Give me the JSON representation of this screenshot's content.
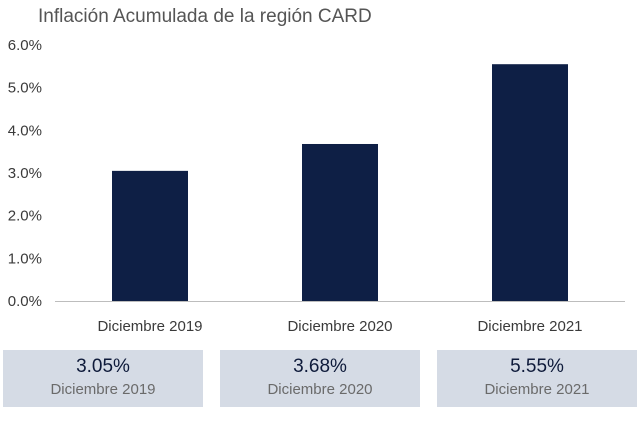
{
  "chart_data": {
    "type": "bar",
    "title": "Inflación Acumulada de la región CARD",
    "categories": [
      "Diciembre 2019",
      "Diciembre 2020",
      "Diciembre 2021"
    ],
    "values": [
      3.05,
      3.68,
      5.55
    ],
    "ylim": [
      0,
      6
    ],
    "yticks": [
      "0.0%",
      "1.0%",
      "2.0%",
      "3.0%",
      "4.0%",
      "5.0%",
      "6.0%"
    ],
    "xlabel": "",
    "ylabel": "",
    "grid": false,
    "bar_color": "#0e1f45"
  },
  "summary": [
    {
      "value": "3.05%",
      "label": "Diciembre 2019"
    },
    {
      "value": "3.68%",
      "label": "Diciembre 2020"
    },
    {
      "value": "5.55%",
      "label": "Diciembre 2021"
    }
  ]
}
